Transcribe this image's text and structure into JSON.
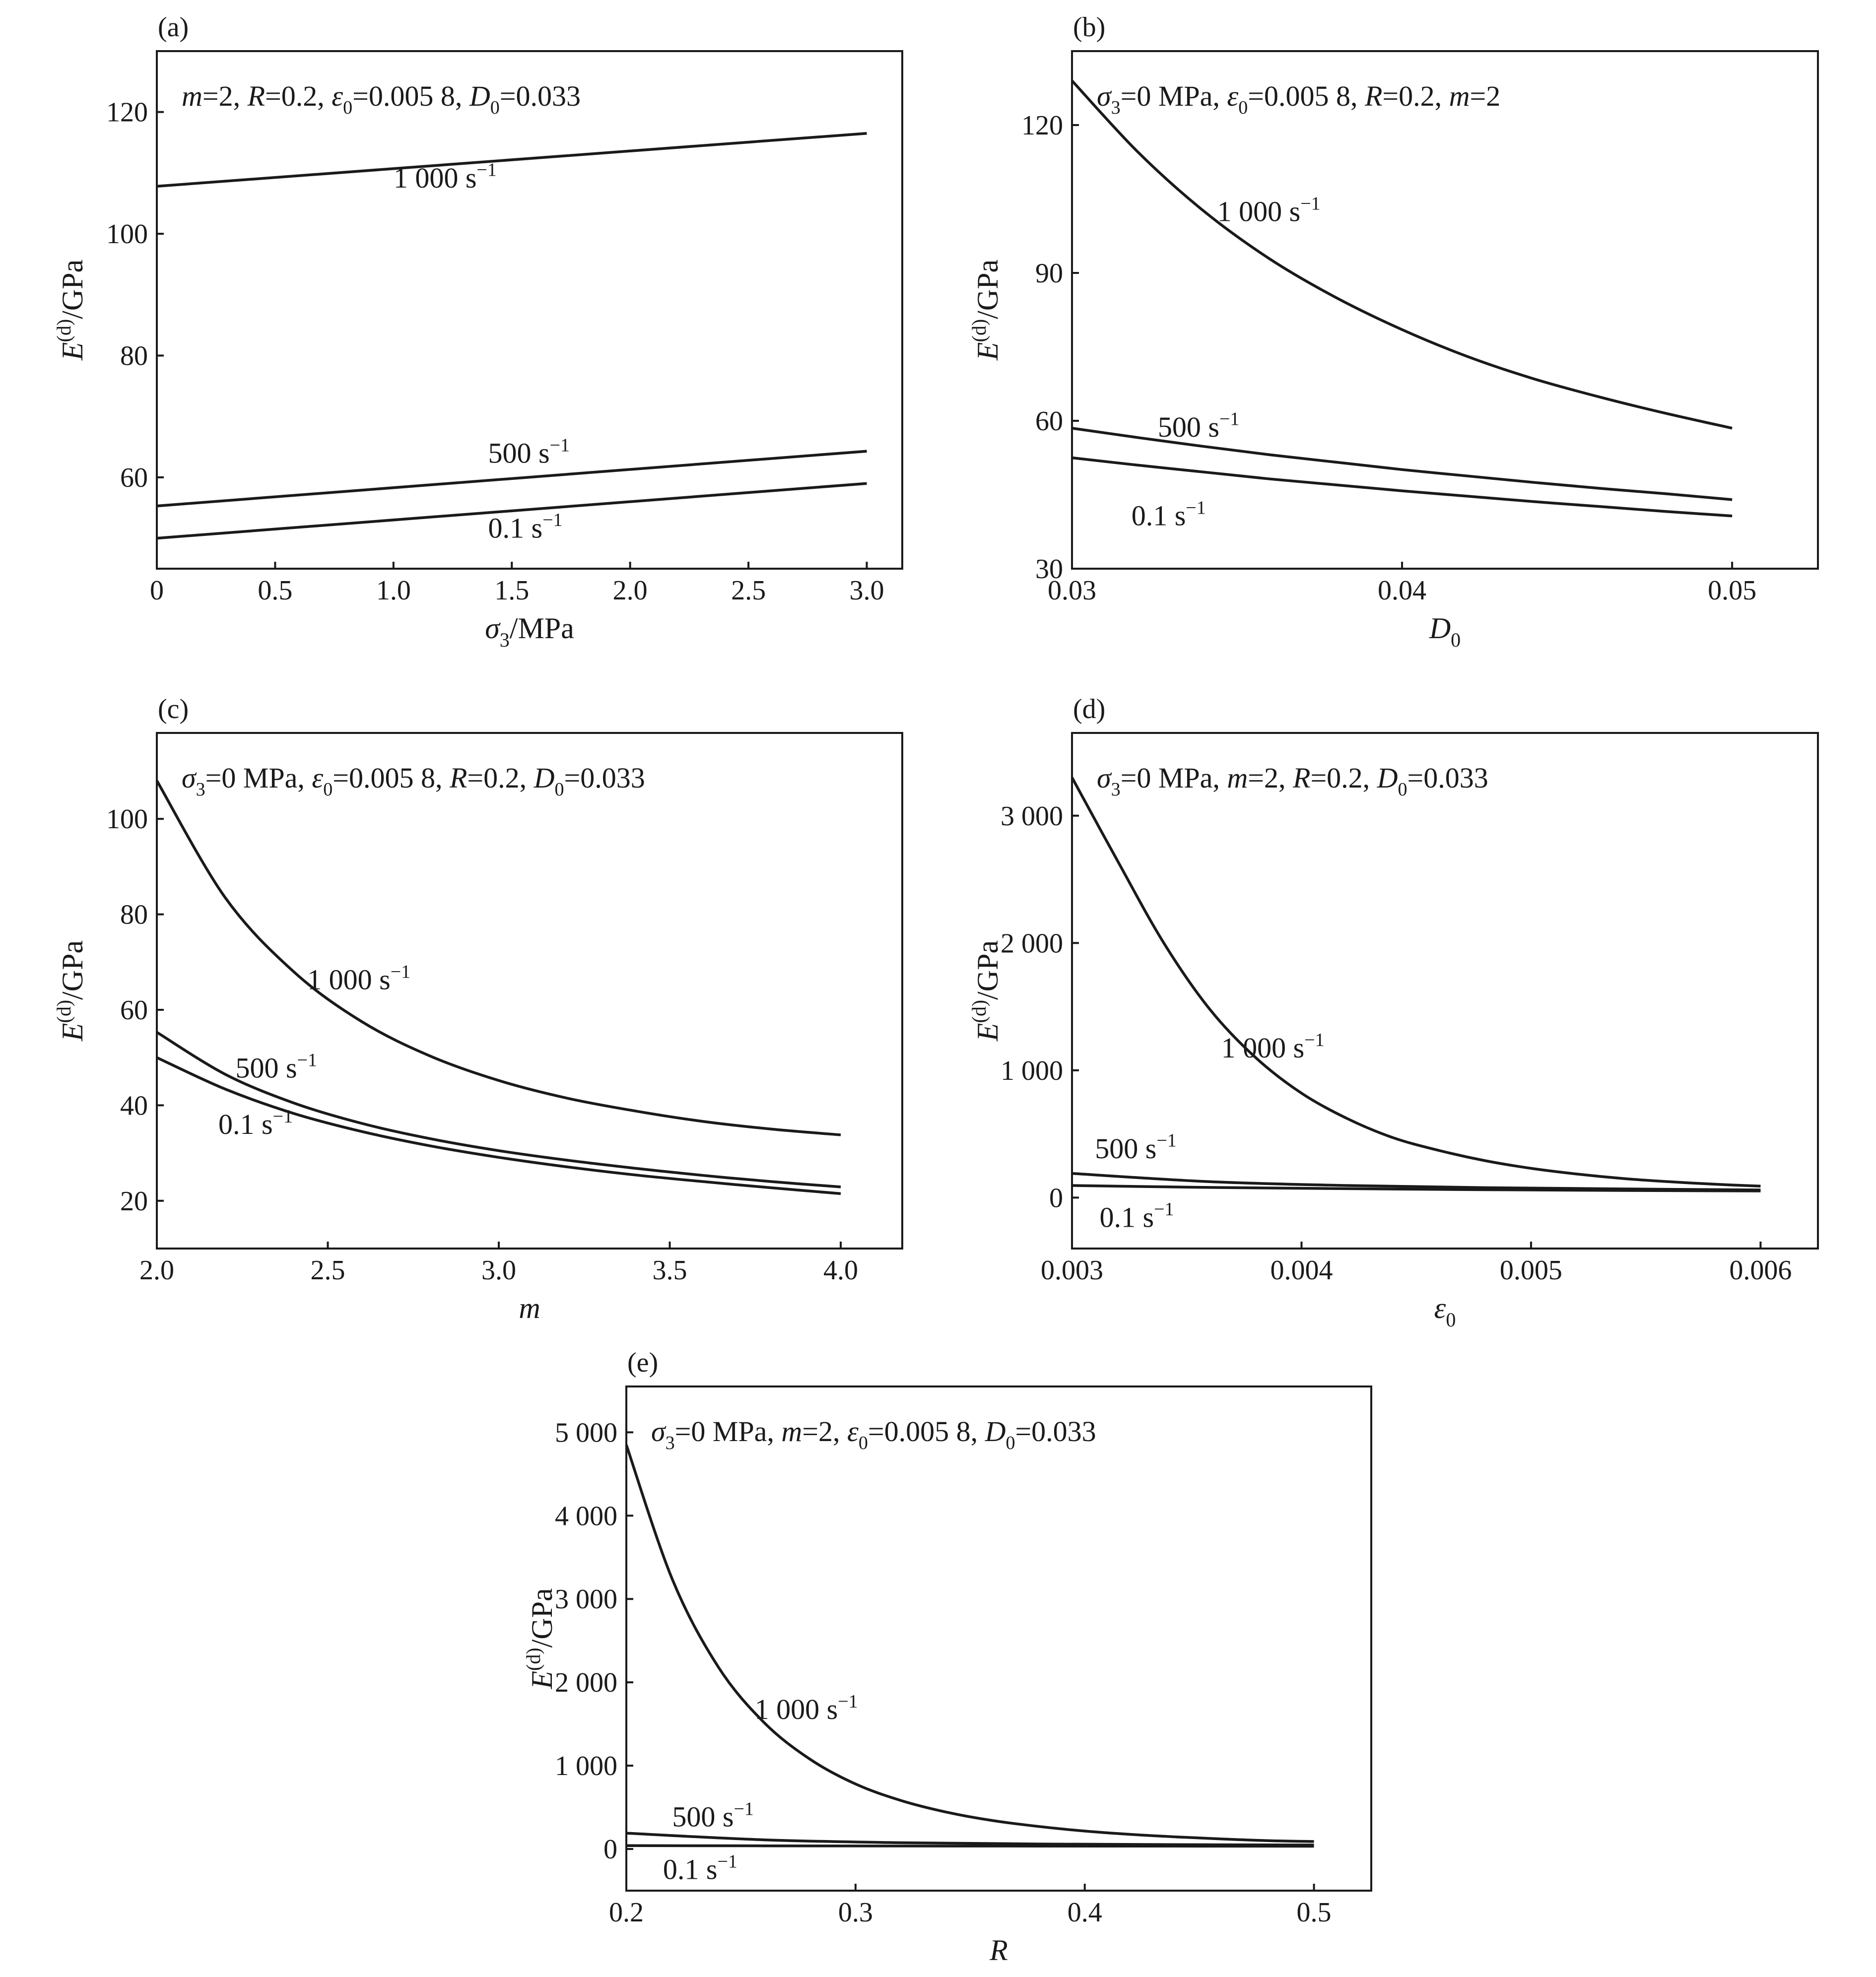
{
  "chart_data": [
    {
      "id": "a",
      "type": "line",
      "panel_label": "(a)",
      "annotation": [
        {
          "t": "m",
          "s": "i"
        },
        {
          "t": "=2, "
        },
        {
          "t": "R",
          "s": "i"
        },
        {
          "t": "=0.2, "
        },
        {
          "t": "ε",
          "s": "i"
        },
        {
          "t": "0",
          "s": "sub"
        },
        {
          "t": "=0.005 8, "
        },
        {
          "t": "D",
          "s": "i"
        },
        {
          "t": "0",
          "s": "sub"
        },
        {
          "t": "=0.033"
        }
      ],
      "xlabel": [
        {
          "t": "σ",
          "s": "i"
        },
        {
          "t": "3",
          "s": "sub"
        },
        {
          "t": "/MPa"
        }
      ],
      "ylabel": [
        {
          "t": "E",
          "s": "i"
        },
        {
          "t": "(d)",
          "s": "sup"
        },
        {
          "t": "/GPa"
        }
      ],
      "xlim": [
        0,
        3.15
      ],
      "ylim": [
        45,
        130
      ],
      "xticks": [
        0,
        0.5,
        1.0,
        1.5,
        2.0,
        2.5,
        3.0
      ],
      "xtick_labels": [
        "0",
        "0.5",
        "1.0",
        "1.5",
        "2.0",
        "2.5",
        "3.0"
      ],
      "yticks": [
        60,
        80,
        100,
        120
      ],
      "ytick_labels": [
        "60",
        "80",
        "100",
        "120"
      ],
      "series": [
        {
          "label": [
            {
              "t": "1 000 s"
            },
            {
              "t": "−1",
              "s": "sup"
            }
          ],
          "label_at": [
            1.0,
            107.6
          ],
          "x": [
            0,
            3.0
          ],
          "y": [
            107.8,
            116.5
          ]
        },
        {
          "label": [
            {
              "t": "500 s"
            },
            {
              "t": "−1",
              "s": "sup"
            }
          ],
          "label_at": [
            1.4,
            62.4
          ],
          "x": [
            0,
            3.0
          ],
          "y": [
            55.3,
            64.3
          ]
        },
        {
          "label": [
            {
              "t": "0.1 s"
            },
            {
              "t": "−1",
              "s": "sup"
            }
          ],
          "label_at": [
            1.4,
            50.1
          ],
          "x": [
            0,
            3.0
          ],
          "y": [
            50.0,
            59.0
          ]
        }
      ]
    },
    {
      "id": "b",
      "type": "line",
      "panel_label": "(b)",
      "annotation": [
        {
          "t": "σ",
          "s": "i"
        },
        {
          "t": "3",
          "s": "sub"
        },
        {
          "t": "=0 MPa, "
        },
        {
          "t": "ε",
          "s": "i"
        },
        {
          "t": "0",
          "s": "sub"
        },
        {
          "t": "=0.005 8, "
        },
        {
          "t": "R",
          "s": "i"
        },
        {
          "t": "=0.2, "
        },
        {
          "t": "m",
          "s": "i"
        },
        {
          "t": "=2"
        }
      ],
      "xlabel": [
        {
          "t": "D",
          "s": "i"
        },
        {
          "t": "0",
          "s": "sub"
        }
      ],
      "ylabel": [
        {
          "t": "E",
          "s": "i"
        },
        {
          "t": "(d)",
          "s": "sup"
        },
        {
          "t": "/GPa"
        }
      ],
      "xlim": [
        0.03,
        0.0526
      ],
      "ylim": [
        30,
        135
      ],
      "xticks": [
        0.03,
        0.04,
        0.05
      ],
      "xtick_labels": [
        "0.03",
        "0.04",
        "0.05"
      ],
      "yticks": [
        30,
        60,
        90,
        120
      ],
      "ytick_labels": [
        "30",
        "60",
        "90",
        "120"
      ],
      "series": [
        {
          "label": [
            {
              "t": "1 000 s"
            },
            {
              "t": "−1",
              "s": "sup"
            }
          ],
          "label_at": [
            0.0344,
            100.5
          ],
          "x": [
            0.03,
            0.032,
            0.034,
            0.036,
            0.038,
            0.04,
            0.042,
            0.044,
            0.046,
            0.048,
            0.05
          ],
          "y": [
            129.0,
            114.5,
            102.5,
            92.8,
            85.0,
            78.5,
            73.0,
            68.5,
            64.8,
            61.5,
            58.5
          ]
        },
        {
          "label": [
            {
              "t": "500 s"
            },
            {
              "t": "−1",
              "s": "sup"
            }
          ],
          "label_at": [
            0.0326,
            56.8
          ],
          "x": [
            0.03,
            0.032,
            0.034,
            0.036,
            0.038,
            0.04,
            0.042,
            0.044,
            0.046,
            0.048,
            0.05
          ],
          "y": [
            58.5,
            56.6,
            54.8,
            53.1,
            51.6,
            50.1,
            48.8,
            47.5,
            46.3,
            45.2,
            44.0
          ]
        },
        {
          "label": [
            {
              "t": "0.1 s"
            },
            {
              "t": "−1",
              "s": "sup"
            }
          ],
          "label_at": [
            0.0318,
            38.8
          ],
          "x": [
            0.03,
            0.032,
            0.034,
            0.036,
            0.038,
            0.04,
            0.042,
            0.044,
            0.046,
            0.048,
            0.05
          ],
          "y": [
            52.5,
            51.0,
            49.6,
            48.2,
            47.0,
            45.8,
            44.7,
            43.6,
            42.6,
            41.6,
            40.7
          ]
        }
      ]
    },
    {
      "id": "c",
      "type": "line",
      "panel_label": "(c)",
      "annotation": [
        {
          "t": "σ",
          "s": "i"
        },
        {
          "t": "3",
          "s": "sub"
        },
        {
          "t": "=0 MPa, "
        },
        {
          "t": "ε",
          "s": "i"
        },
        {
          "t": "0",
          "s": "sub"
        },
        {
          "t": "=0.005 8, "
        },
        {
          "t": "R",
          "s": "i"
        },
        {
          "t": "=0.2, "
        },
        {
          "t": "D",
          "s": "i"
        },
        {
          "t": "0",
          "s": "sub"
        },
        {
          "t": "=0.033"
        }
      ],
      "xlabel": [
        {
          "t": "m",
          "s": "i"
        }
      ],
      "ylabel": [
        {
          "t": "E",
          "s": "i"
        },
        {
          "t": "(d)",
          "s": "sup"
        },
        {
          "t": "/GPa"
        }
      ],
      "xlim": [
        2.0,
        4.18
      ],
      "ylim": [
        10,
        118
      ],
      "xticks": [
        2.0,
        2.5,
        3.0,
        3.5,
        4.0
      ],
      "xtick_labels": [
        "2.0",
        "2.5",
        "3.0",
        "3.5",
        "4.0"
      ],
      "yticks": [
        20,
        40,
        60,
        80,
        100
      ],
      "ytick_labels": [
        "20",
        "40",
        "60",
        "80",
        "100"
      ],
      "series": [
        {
          "label": [
            {
              "t": "1 000 s"
            },
            {
              "t": "−1",
              "s": "sup"
            }
          ],
          "label_at": [
            2.44,
            64.3
          ],
          "x": [
            2.0,
            2.2,
            2.4,
            2.6,
            2.8,
            3.0,
            3.2,
            3.4,
            3.6,
            3.8,
            4.0
          ],
          "y": [
            108.0,
            83.5,
            68.0,
            57.5,
            50.3,
            45.2,
            41.5,
            38.8,
            36.6,
            35.0,
            33.8
          ]
        },
        {
          "label": [
            {
              "t": "500 s"
            },
            {
              "t": "−1",
              "s": "sup"
            }
          ],
          "label_at": [
            2.23,
            45.8
          ],
          "x": [
            2.0,
            2.2,
            2.4,
            2.6,
            2.8,
            3.0,
            3.2,
            3.4,
            3.6,
            3.8,
            4.0
          ],
          "y": [
            55.3,
            46.5,
            40.5,
            36.2,
            33.0,
            30.5,
            28.5,
            26.8,
            25.3,
            24.0,
            22.9
          ]
        },
        {
          "label": [
            {
              "t": "0.1 s"
            },
            {
              "t": "−1",
              "s": "sup"
            }
          ],
          "label_at": [
            2.18,
            34.0
          ],
          "x": [
            2.0,
            2.2,
            2.4,
            2.6,
            2.8,
            3.0,
            3.2,
            3.4,
            3.6,
            3.8,
            4.0
          ],
          "y": [
            50.0,
            43.4,
            38.3,
            34.5,
            31.5,
            29.1,
            27.1,
            25.4,
            24.0,
            22.7,
            21.5
          ]
        }
      ]
    },
    {
      "id": "d",
      "type": "line",
      "panel_label": "(d)",
      "annotation": [
        {
          "t": "σ",
          "s": "i"
        },
        {
          "t": "3",
          "s": "sub"
        },
        {
          "t": "=0 MPa, "
        },
        {
          "t": "m",
          "s": "i"
        },
        {
          "t": "=2, "
        },
        {
          "t": "R",
          "s": "i"
        },
        {
          "t": "=0.2, "
        },
        {
          "t": "D",
          "s": "i"
        },
        {
          "t": "0",
          "s": "sub"
        },
        {
          "t": "=0.033"
        }
      ],
      "xlabel": [
        {
          "t": "ε",
          "s": "i"
        },
        {
          "t": "0",
          "s": "sub"
        }
      ],
      "ylabel": [
        {
          "t": "E",
          "s": "i"
        },
        {
          "t": "(d)",
          "s": "sup"
        },
        {
          "t": "/GPa"
        }
      ],
      "xlim": [
        0.003,
        0.00625
      ],
      "ylim": [
        -400,
        3650
      ],
      "xticks": [
        0.003,
        0.004,
        0.005,
        0.006
      ],
      "xtick_labels": [
        "0.003",
        "0.004",
        "0.005",
        "0.006"
      ],
      "yticks": [
        0,
        1000,
        2000,
        3000
      ],
      "ytick_labels": [
        "0",
        "1 000",
        "2 000",
        "3 000"
      ],
      "series": [
        {
          "label": [
            {
              "t": "1 000 s"
            },
            {
              "t": "−1",
              "s": "sup"
            }
          ],
          "label_at": [
            0.00365,
            1100
          ],
          "x": [
            0.003,
            0.0032,
            0.0034,
            0.0036,
            0.0038,
            0.004,
            0.0042,
            0.0044,
            0.0046,
            0.0048,
            0.005,
            0.0052,
            0.0054,
            0.0056,
            0.0058,
            0.006
          ],
          "y": [
            3300,
            2640,
            2000,
            1480,
            1100,
            820,
            620,
            470,
            370,
            290,
            230,
            185,
            150,
            125,
            105,
            90
          ]
        },
        {
          "label": [
            {
              "t": "500 s"
            },
            {
              "t": "−1",
              "s": "sup"
            }
          ],
          "label_at": [
            0.0031,
            310
          ],
          "x": [
            0.003,
            0.0036,
            0.0042,
            0.0048,
            0.0054,
            0.006
          ],
          "y": [
            190,
            125,
            95,
            78,
            68,
            60
          ]
        },
        {
          "label": [
            {
              "t": "0.1 s"
            },
            {
              "t": "−1",
              "s": "sup"
            }
          ],
          "label_at": [
            0.00312,
            -230
          ],
          "x": [
            0.003,
            0.0036,
            0.0042,
            0.0048,
            0.0054,
            0.006
          ],
          "y": [
            95,
            80,
            70,
            62,
            56,
            52
          ]
        }
      ]
    },
    {
      "id": "e",
      "type": "line",
      "panel_label": "(e)",
      "annotation": [
        {
          "t": "σ",
          "s": "i"
        },
        {
          "t": "3",
          "s": "sub"
        },
        {
          "t": "=0 MPa, "
        },
        {
          "t": "m",
          "s": "i"
        },
        {
          "t": "=2, "
        },
        {
          "t": "ε",
          "s": "i"
        },
        {
          "t": "0",
          "s": "sub"
        },
        {
          "t": "=0.005 8, "
        },
        {
          "t": "D",
          "s": "i"
        },
        {
          "t": "0",
          "s": "sub"
        },
        {
          "t": "=0.033"
        }
      ],
      "xlabel": [
        {
          "t": "R",
          "s": "i"
        }
      ],
      "ylabel": [
        {
          "t": "E",
          "s": "i"
        },
        {
          "t": "(d)",
          "s": "sup"
        },
        {
          "t": "/GPa"
        }
      ],
      "xlim": [
        0.2,
        0.525
      ],
      "ylim": [
        -500,
        5550
      ],
      "xticks": [
        0.2,
        0.3,
        0.4,
        0.5
      ],
      "xtick_labels": [
        "0.2",
        "0.3",
        "0.4",
        "0.5"
      ],
      "yticks": [
        0,
        1000,
        2000,
        3000,
        4000,
        5000
      ],
      "ytick_labels": [
        "0",
        "1 000",
        "2 000",
        "3 000",
        "4 000",
        "5 000"
      ],
      "series": [
        {
          "label": [
            {
              "t": "1 000 s"
            },
            {
              "t": "−1",
              "s": "sup"
            }
          ],
          "label_at": [
            0.256,
            1560
          ],
          "x": [
            0.2,
            0.22,
            0.24,
            0.26,
            0.28,
            0.3,
            0.32,
            0.34,
            0.36,
            0.38,
            0.4,
            0.42,
            0.44,
            0.46,
            0.48,
            0.5
          ],
          "y": [
            4850,
            3240,
            2190,
            1520,
            1080,
            780,
            580,
            440,
            340,
            270,
            215,
            175,
            145,
            120,
            100,
            90
          ]
        },
        {
          "label": [
            {
              "t": "500 s"
            },
            {
              "t": "−1",
              "s": "sup"
            }
          ],
          "label_at": [
            0.22,
            270
          ],
          "x": [
            0.2,
            0.26,
            0.32,
            0.38,
            0.44,
            0.5
          ],
          "y": [
            190,
            110,
            75,
            60,
            52,
            48
          ]
        },
        {
          "label": [
            {
              "t": "0.1 s"
            },
            {
              "t": "−1",
              "s": "sup"
            }
          ],
          "label_at": [
            0.216,
            -360
          ],
          "x": [
            0.2,
            0.26,
            0.32,
            0.38,
            0.44,
            0.5
          ],
          "y": [
            40,
            38,
            36,
            35,
            34,
            33
          ]
        }
      ]
    }
  ]
}
